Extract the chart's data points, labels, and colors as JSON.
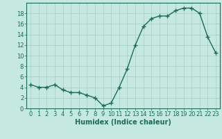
{
  "x": [
    0,
    1,
    2,
    3,
    4,
    5,
    6,
    7,
    8,
    9,
    10,
    11,
    12,
    13,
    14,
    15,
    16,
    17,
    18,
    19,
    20,
    21,
    22,
    23
  ],
  "y": [
    4.5,
    4.0,
    4.0,
    4.5,
    3.5,
    3.0,
    3.0,
    2.5,
    2.0,
    0.5,
    1.0,
    4.0,
    7.5,
    12.0,
    15.5,
    17.0,
    17.5,
    17.5,
    18.5,
    19.0,
    19.0,
    18.0,
    13.5,
    10.5
  ],
  "line_color": "#1a6b5a",
  "marker": "+",
  "marker_size": 4,
  "bg_color": "#c5e8e0",
  "grid_color": "#a8ccc5",
  "xlabel": "Humidex (Indice chaleur)",
  "xlim": [
    -0.5,
    23.5
  ],
  "ylim": [
    0,
    20
  ],
  "yticks": [
    0,
    2,
    4,
    6,
    8,
    10,
    12,
    14,
    16,
    18
  ],
  "xticks": [
    0,
    1,
    2,
    3,
    4,
    5,
    6,
    7,
    8,
    9,
    10,
    11,
    12,
    13,
    14,
    15,
    16,
    17,
    18,
    19,
    20,
    21,
    22,
    23
  ],
  "tick_color": "#1a6b5a",
  "label_fontsize": 6,
  "xlabel_fontsize": 7,
  "line_width": 1.0,
  "spine_color": "#1a6b5a"
}
